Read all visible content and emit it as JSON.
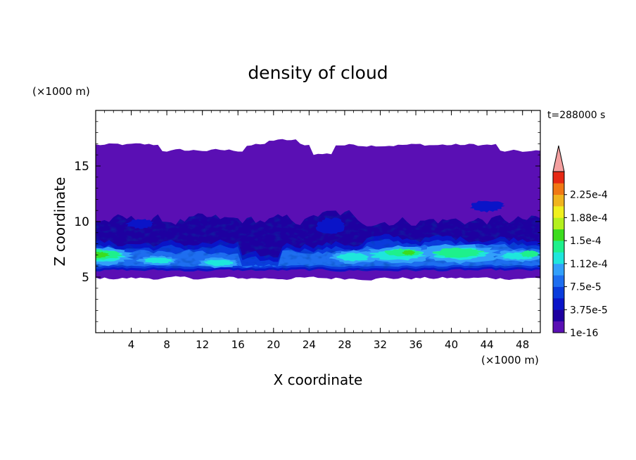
{
  "chart_data": {
    "type": "heatmap",
    "title": "density of cloud",
    "xlabel": "X coordinate",
    "ylabel": "Z coordinate",
    "x_unit": "(×1000 m)",
    "y_unit": "(×1000 m)",
    "time_label": "t=288000 s",
    "xlim": [
      0,
      50
    ],
    "ylim": [
      0,
      20
    ],
    "x_ticks": [
      4,
      8,
      12,
      16,
      20,
      24,
      28,
      32,
      36,
      40,
      44,
      48
    ],
    "y_ticks": [
      5,
      10,
      15
    ],
    "colorbar": {
      "levels": [
        "1e-16",
        "1.875e-5",
        "3.75e-5",
        "5.625e-5",
        "7.5e-5",
        "9.375e-5",
        "1.12e-4",
        "1.31e-4",
        "1.5e-4",
        "1.69e-4",
        "1.88e-4",
        "2.06e-4",
        "2.25e-4",
        "2.44e-4"
      ],
      "tick_labels": [
        "1e-16",
        "3.75e-5",
        "7.5e-5",
        "1.12e-4",
        "1.5e-4",
        "1.88e-4",
        "2.25e-4"
      ],
      "colors": [
        "#5a0fb4",
        "#1e00a0",
        "#0a14c8",
        "#0a3cdc",
        "#1e6ef0",
        "#32a0fa",
        "#1ee6dc",
        "#1ef08c",
        "#3cdc1e",
        "#b4f01e",
        "#f0f01e",
        "#f0b41e",
        "#f07814",
        "#e62814"
      ],
      "extend_color": "#f4a0a0"
    },
    "field": {
      "cloud_base_z": 5,
      "cloud_top_z": 17,
      "mid_layer_z": [
        5.5,
        11
      ],
      "high_density_band_z": [
        5.5,
        8.5
      ],
      "peak_value_approx": 0.00013,
      "peak_locations_x": [
        1,
        34,
        41
      ]
    }
  }
}
